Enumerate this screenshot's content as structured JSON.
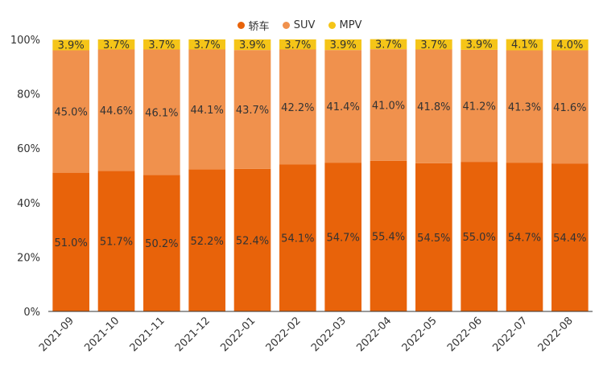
{
  "chart_data": {
    "type": "bar",
    "stacked": true,
    "categories": [
      "2021-09",
      "2021-10",
      "2021-11",
      "2021-12",
      "2022-01",
      "2022-02",
      "2022-03",
      "2022-04",
      "2022-05",
      "2022-06",
      "2022-07",
      "2022-08"
    ],
    "series": [
      {
        "name": "轿车",
        "color": "#E8630A",
        "values": [
          51.0,
          51.7,
          50.2,
          52.2,
          52.4,
          54.1,
          54.7,
          55.4,
          54.5,
          55.0,
          54.7,
          54.4
        ],
        "labels": [
          "51.0%",
          "51.7%",
          "50.2%",
          "52.2%",
          "52.4%",
          "54.1%",
          "54.7%",
          "55.4%",
          "54.5%",
          "55.0%",
          "54.7%",
          "54.4%"
        ]
      },
      {
        "name": "SUV",
        "color": "#F0914D",
        "values": [
          45.0,
          44.6,
          46.1,
          44.1,
          43.7,
          42.2,
          41.4,
          41.0,
          41.8,
          41.2,
          41.3,
          41.6
        ],
        "labels": [
          "45.0%",
          "44.6%",
          "46.1%",
          "44.1%",
          "43.7%",
          "42.2%",
          "41.4%",
          "41.0%",
          "41.8%",
          "41.2%",
          "41.3%",
          "41.6%"
        ]
      },
      {
        "name": "MPV",
        "color": "#F5C518",
        "values": [
          3.9,
          3.7,
          3.7,
          3.7,
          3.9,
          3.7,
          3.9,
          3.7,
          3.7,
          3.9,
          4.1,
          4.0
        ],
        "labels": [
          "3.9%",
          "3.7%",
          "3.7%",
          "3.7%",
          "3.9%",
          "3.7%",
          "3.9%",
          "3.7%",
          "3.7%",
          "3.9%",
          "4.1%",
          "4.0%"
        ]
      }
    ],
    "yticks": [
      "0%",
      "20%",
      "40%",
      "60%",
      "80%",
      "100%"
    ],
    "ylim": [
      0,
      100
    ],
    "legend_position": "top-center",
    "grid": false
  }
}
